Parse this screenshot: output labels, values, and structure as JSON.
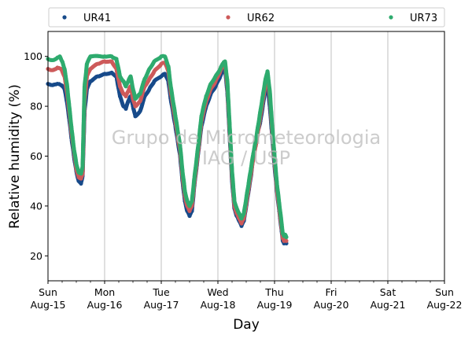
{
  "chart_data": {
    "type": "scatter",
    "title": "",
    "xlabel": "Day",
    "ylabel": "Relative humidity (%)",
    "xlim": [
      "2021-08-15T00:00",
      "2021-08-22T00:00"
    ],
    "ylim": [
      10,
      110
    ],
    "yticks": [
      20,
      40,
      60,
      80,
      100
    ],
    "xticks": [
      {
        "date": "2021-08-15",
        "line1": "Sun",
        "line2": "Aug-15"
      },
      {
        "date": "2021-08-16",
        "line1": "Mon",
        "line2": "Aug-16"
      },
      {
        "date": "2021-08-17",
        "line1": "Tue",
        "line2": "Aug-17"
      },
      {
        "date": "2021-08-18",
        "line1": "Wed",
        "line2": "Aug-18"
      },
      {
        "date": "2021-08-19",
        "line1": "Thu",
        "line2": "Aug-19"
      },
      {
        "date": "2021-08-20",
        "line1": "Fri",
        "line2": "Aug-20"
      },
      {
        "date": "2021-08-21",
        "line1": "Sat",
        "line2": "Aug-21"
      },
      {
        "date": "2021-08-22",
        "line1": "Sun",
        "line2": "Aug-22"
      }
    ],
    "grid": "vertical",
    "legend": "top, outside",
    "watermark": [
      "Grupo de Micrometeorologia",
      "IAG / USP"
    ],
    "series": [
      {
        "name": "UR41",
        "color": "#174a8a",
        "points": [
          [
            "2021-08-15T00:00",
            89
          ],
          [
            "2021-08-15T02:00",
            88.5
          ],
          [
            "2021-08-15T04:00",
            89
          ],
          [
            "2021-08-15T05:30",
            88.5
          ],
          [
            "2021-08-15T07:00",
            87
          ],
          [
            "2021-08-15T08:00",
            82
          ],
          [
            "2021-08-15T09:00",
            75
          ],
          [
            "2021-08-15T10:00",
            67
          ],
          [
            "2021-08-15T11:00",
            60
          ],
          [
            "2021-08-15T12:00",
            54
          ],
          [
            "2021-08-15T13:00",
            50
          ],
          [
            "2021-08-15T14:00",
            49
          ],
          [
            "2021-08-15T14:40",
            52
          ],
          [
            "2021-08-15T15:30",
            78
          ],
          [
            "2021-08-15T16:30",
            87
          ],
          [
            "2021-08-15T18:00",
            90
          ],
          [
            "2021-08-15T21:00",
            92
          ],
          [
            "2021-08-16T00:00",
            93
          ],
          [
            "2021-08-16T03:00",
            93.5
          ],
          [
            "2021-08-16T05:00",
            92
          ],
          [
            "2021-08-16T06:30",
            84
          ],
          [
            "2021-08-16T08:00",
            80
          ],
          [
            "2021-08-16T09:00",
            79
          ],
          [
            "2021-08-16T10:00",
            82
          ],
          [
            "2021-08-16T11:00",
            84
          ],
          [
            "2021-08-16T12:00",
            80
          ],
          [
            "2021-08-16T13:00",
            76
          ],
          [
            "2021-08-16T15:00",
            78
          ],
          [
            "2021-08-16T17:00",
            84
          ],
          [
            "2021-08-16T19:00",
            87
          ],
          [
            "2021-08-16T21:00",
            90
          ],
          [
            "2021-08-17T00:00",
            92
          ],
          [
            "2021-08-17T01:30",
            93
          ],
          [
            "2021-08-17T03:00",
            90
          ],
          [
            "2021-08-17T04:00",
            83
          ],
          [
            "2021-08-17T06:00",
            72
          ],
          [
            "2021-08-17T08:00",
            60
          ],
          [
            "2021-08-17T09:00",
            50
          ],
          [
            "2021-08-17T10:00",
            42
          ],
          [
            "2021-08-17T11:00",
            38
          ],
          [
            "2021-08-17T12:00",
            36
          ],
          [
            "2021-08-17T13:00",
            38
          ],
          [
            "2021-08-17T14:00",
            48
          ],
          [
            "2021-08-17T15:00",
            56
          ],
          [
            "2021-08-17T16:00",
            64
          ],
          [
            "2021-08-17T17:00",
            72
          ],
          [
            "2021-08-17T19:00",
            80
          ],
          [
            "2021-08-17T21:00",
            85
          ],
          [
            "2021-08-17T23:00",
            88
          ],
          [
            "2021-08-18T01:00",
            92
          ],
          [
            "2021-08-18T02:00",
            94
          ],
          [
            "2021-08-18T03:00",
            95
          ],
          [
            "2021-08-18T04:00",
            86
          ],
          [
            "2021-08-18T05:00",
            68
          ],
          [
            "2021-08-18T06:00",
            50
          ],
          [
            "2021-08-18T07:00",
            39
          ],
          [
            "2021-08-18T08:00",
            36
          ],
          [
            "2021-08-18T09:00",
            34
          ],
          [
            "2021-08-18T10:00",
            32
          ],
          [
            "2021-08-18T11:00",
            34
          ],
          [
            "2021-08-18T12:00",
            40
          ],
          [
            "2021-08-18T13:00",
            46
          ],
          [
            "2021-08-18T14:00",
            52
          ],
          [
            "2021-08-18T15:00",
            60
          ],
          [
            "2021-08-18T16:00",
            66
          ],
          [
            "2021-08-18T17:00",
            70
          ],
          [
            "2021-08-18T18:00",
            74
          ],
          [
            "2021-08-18T19:00",
            80
          ],
          [
            "2021-08-18T20:00",
            86
          ],
          [
            "2021-08-18T21:00",
            89
          ],
          [
            "2021-08-18T22:00",
            80
          ],
          [
            "2021-08-18T23:00",
            68
          ],
          [
            "2021-08-19T00:00",
            56
          ],
          [
            "2021-08-19T01:00",
            46
          ],
          [
            "2021-08-19T02:00",
            38
          ],
          [
            "2021-08-19T03:00",
            30
          ],
          [
            "2021-08-19T03:30",
            26
          ],
          [
            "2021-08-19T04:00",
            25
          ],
          [
            "2021-08-19T04:30",
            25.5
          ],
          [
            "2021-08-19T05:00",
            25
          ]
        ]
      },
      {
        "name": "UR62",
        "color": "#cd5a5a",
        "points": [
          [
            "2021-08-15T00:00",
            95
          ],
          [
            "2021-08-15T02:00",
            94.5
          ],
          [
            "2021-08-15T04:00",
            95.5
          ],
          [
            "2021-08-15T05:30",
            95
          ],
          [
            "2021-08-15T07:00",
            92
          ],
          [
            "2021-08-15T08:00",
            86
          ],
          [
            "2021-08-15T09:00",
            78
          ],
          [
            "2021-08-15T10:00",
            69
          ],
          [
            "2021-08-15T11:00",
            62
          ],
          [
            "2021-08-15T12:00",
            55
          ],
          [
            "2021-08-15T13:00",
            51.5
          ],
          [
            "2021-08-15T14:00",
            51
          ],
          [
            "2021-08-15T14:40",
            53
          ],
          [
            "2021-08-15T15:30",
            82
          ],
          [
            "2021-08-15T16:30",
            92
          ],
          [
            "2021-08-15T18:00",
            95
          ],
          [
            "2021-08-15T21:00",
            97
          ],
          [
            "2021-08-16T00:00",
            98
          ],
          [
            "2021-08-16T03:00",
            98
          ],
          [
            "2021-08-16T05:00",
            95
          ],
          [
            "2021-08-16T06:30",
            88
          ],
          [
            "2021-08-16T08:00",
            85
          ],
          [
            "2021-08-16T09:00",
            84
          ],
          [
            "2021-08-16T10:00",
            86
          ],
          [
            "2021-08-16T11:00",
            88
          ],
          [
            "2021-08-16T12:00",
            83
          ],
          [
            "2021-08-16T13:00",
            80
          ],
          [
            "2021-08-16T15:00",
            82
          ],
          [
            "2021-08-16T17:00",
            88
          ],
          [
            "2021-08-16T19:00",
            91
          ],
          [
            "2021-08-16T21:00",
            94
          ],
          [
            "2021-08-17T00:00",
            97
          ],
          [
            "2021-08-17T01:30",
            97.5
          ],
          [
            "2021-08-17T03:00",
            94
          ],
          [
            "2021-08-17T04:00",
            86
          ],
          [
            "2021-08-17T06:00",
            74
          ],
          [
            "2021-08-17T08:00",
            62
          ],
          [
            "2021-08-17T09:00",
            52
          ],
          [
            "2021-08-17T10:00",
            44
          ],
          [
            "2021-08-17T11:00",
            40
          ],
          [
            "2021-08-17T12:00",
            38
          ],
          [
            "2021-08-17T13:00",
            40
          ],
          [
            "2021-08-17T14:00",
            49
          ],
          [
            "2021-08-17T15:00",
            57
          ],
          [
            "2021-08-17T16:00",
            65
          ],
          [
            "2021-08-17T17:00",
            74
          ],
          [
            "2021-08-17T19:00",
            82
          ],
          [
            "2021-08-17T21:00",
            87
          ],
          [
            "2021-08-17T23:00",
            90
          ],
          [
            "2021-08-18T01:00",
            94
          ],
          [
            "2021-08-18T02:00",
            96
          ],
          [
            "2021-08-18T03:00",
            97
          ],
          [
            "2021-08-18T04:00",
            88
          ],
          [
            "2021-08-18T05:00",
            70
          ],
          [
            "2021-08-18T06:00",
            52
          ],
          [
            "2021-08-18T07:00",
            40
          ],
          [
            "2021-08-18T08:00",
            37
          ],
          [
            "2021-08-18T09:00",
            35
          ],
          [
            "2021-08-18T10:00",
            33
          ],
          [
            "2021-08-18T11:00",
            35
          ],
          [
            "2021-08-18T12:00",
            41
          ],
          [
            "2021-08-18T13:00",
            47
          ],
          [
            "2021-08-18T14:00",
            53
          ],
          [
            "2021-08-18T15:00",
            59
          ],
          [
            "2021-08-18T16:00",
            64
          ],
          [
            "2021-08-18T17:00",
            70
          ],
          [
            "2021-08-18T18:00",
            76
          ],
          [
            "2021-08-18T19:00",
            82
          ],
          [
            "2021-08-18T20:00",
            88
          ],
          [
            "2021-08-18T21:00",
            92
          ],
          [
            "2021-08-18T22:00",
            84
          ],
          [
            "2021-08-18T23:00",
            70
          ],
          [
            "2021-08-19T00:00",
            58
          ],
          [
            "2021-08-19T01:00",
            47
          ],
          [
            "2021-08-19T02:00",
            39
          ],
          [
            "2021-08-19T03:00",
            31
          ],
          [
            "2021-08-19T03:30",
            27
          ],
          [
            "2021-08-19T04:00",
            26
          ],
          [
            "2021-08-19T04:30",
            26.5
          ],
          [
            "2021-08-19T05:00",
            26
          ]
        ]
      },
      {
        "name": "UR73",
        "color": "#2eab6e",
        "points": [
          [
            "2021-08-15T00:00",
            99
          ],
          [
            "2021-08-15T02:00",
            98.5
          ],
          [
            "2021-08-15T04:00",
            99.5
          ],
          [
            "2021-08-15T05:00",
            100
          ],
          [
            "2021-08-15T06:00",
            98
          ],
          [
            "2021-08-15T07:00",
            95
          ],
          [
            "2021-08-15T08:00",
            89
          ],
          [
            "2021-08-15T09:00",
            80
          ],
          [
            "2021-08-15T10:00",
            71
          ],
          [
            "2021-08-15T11:00",
            63
          ],
          [
            "2021-08-15T12:00",
            57
          ],
          [
            "2021-08-15T13:00",
            53.5
          ],
          [
            "2021-08-15T14:00",
            53
          ],
          [
            "2021-08-15T14:40",
            56
          ],
          [
            "2021-08-15T15:30",
            88
          ],
          [
            "2021-08-15T16:30",
            97
          ],
          [
            "2021-08-15T18:00",
            100
          ],
          [
            "2021-08-16T00:00",
            100
          ],
          [
            "2021-08-16T03:00",
            100
          ],
          [
            "2021-08-16T05:00",
            99
          ],
          [
            "2021-08-16T06:30",
            92
          ],
          [
            "2021-08-16T08:00",
            90
          ],
          [
            "2021-08-16T09:00",
            88
          ],
          [
            "2021-08-16T10:00",
            90
          ],
          [
            "2021-08-16T11:00",
            92
          ],
          [
            "2021-08-16T12:00",
            87
          ],
          [
            "2021-08-16T13:00",
            83
          ],
          [
            "2021-08-16T15:00",
            85
          ],
          [
            "2021-08-16T17:00",
            91
          ],
          [
            "2021-08-16T19:00",
            95
          ],
          [
            "2021-08-16T21:00",
            98
          ],
          [
            "2021-08-17T00:00",
            100
          ],
          [
            "2021-08-17T01:30",
            100
          ],
          [
            "2021-08-17T03:00",
            96
          ],
          [
            "2021-08-17T04:00",
            88
          ],
          [
            "2021-08-17T06:00",
            76
          ],
          [
            "2021-08-17T08:00",
            64
          ],
          [
            "2021-08-17T09:00",
            54
          ],
          [
            "2021-08-17T10:00",
            46
          ],
          [
            "2021-08-17T11:00",
            42
          ],
          [
            "2021-08-17T12:00",
            40
          ],
          [
            "2021-08-17T13:00",
            42
          ],
          [
            "2021-08-17T14:00",
            51
          ],
          [
            "2021-08-17T15:00",
            59
          ],
          [
            "2021-08-17T16:00",
            67
          ],
          [
            "2021-08-17T17:00",
            76
          ],
          [
            "2021-08-17T19:00",
            84
          ],
          [
            "2021-08-17T21:00",
            89
          ],
          [
            "2021-08-17T23:00",
            92
          ],
          [
            "2021-08-18T01:00",
            95
          ],
          [
            "2021-08-18T02:00",
            97
          ],
          [
            "2021-08-18T03:00",
            98
          ],
          [
            "2021-08-18T04:00",
            90
          ],
          [
            "2021-08-18T05:00",
            72
          ],
          [
            "2021-08-18T06:00",
            54
          ],
          [
            "2021-08-18T07:00",
            42
          ],
          [
            "2021-08-18T08:00",
            39
          ],
          [
            "2021-08-18T09:00",
            37
          ],
          [
            "2021-08-18T10:00",
            35
          ],
          [
            "2021-08-18T11:00",
            37
          ],
          [
            "2021-08-18T12:00",
            43
          ],
          [
            "2021-08-18T13:00",
            49
          ],
          [
            "2021-08-18T14:00",
            55
          ],
          [
            "2021-08-18T15:00",
            61
          ],
          [
            "2021-08-18T16:00",
            66
          ],
          [
            "2021-08-18T17:00",
            72
          ],
          [
            "2021-08-18T18:00",
            78
          ],
          [
            "2021-08-18T19:00",
            84
          ],
          [
            "2021-08-18T20:00",
            90
          ],
          [
            "2021-08-18T21:00",
            94
          ],
          [
            "2021-08-18T22:00",
            86
          ],
          [
            "2021-08-18T23:00",
            72
          ],
          [
            "2021-08-19T00:00",
            60
          ],
          [
            "2021-08-19T01:00",
            49
          ],
          [
            "2021-08-19T02:00",
            41
          ],
          [
            "2021-08-19T03:00",
            33
          ],
          [
            "2021-08-19T03:30",
            29
          ],
          [
            "2021-08-19T04:00",
            28
          ],
          [
            "2021-08-19T04:30",
            28.5
          ],
          [
            "2021-08-19T05:00",
            27.5
          ]
        ]
      }
    ]
  }
}
